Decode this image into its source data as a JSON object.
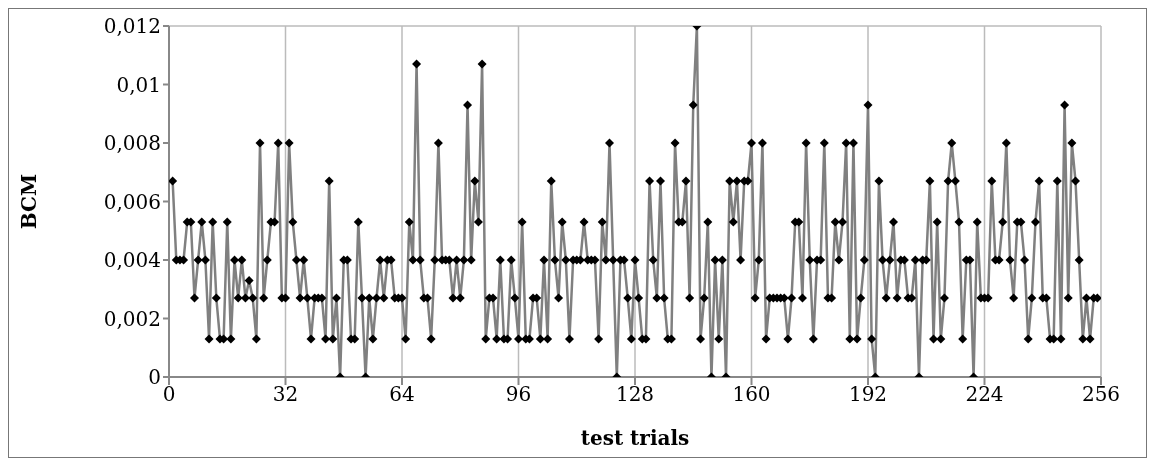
{
  "chart_data": {
    "type": "line",
    "xlabel": "test trials",
    "ylabel": "BCM",
    "x": [
      1,
      2,
      3,
      4,
      5,
      6,
      7,
      8,
      9,
      10,
      11,
      12,
      13,
      14,
      15,
      16,
      17,
      18,
      19,
      20,
      21,
      22,
      23,
      24,
      25,
      26,
      27,
      28,
      29,
      30,
      31,
      32,
      33,
      34,
      35,
      36,
      37,
      38,
      39,
      40,
      41,
      42,
      43,
      44,
      45,
      46,
      47,
      48,
      49,
      50,
      51,
      52,
      53,
      54,
      55,
      56,
      57,
      58,
      59,
      60,
      61,
      62,
      63,
      64,
      65,
      66,
      67,
      68,
      69,
      70,
      71,
      72,
      73,
      74,
      75,
      76,
      77,
      78,
      79,
      80,
      81,
      82,
      83,
      84,
      85,
      86,
      87,
      88,
      89,
      90,
      91,
      92,
      93,
      94,
      95,
      96,
      97,
      98,
      99,
      100,
      101,
      102,
      103,
      104,
      105,
      106,
      107,
      108,
      109,
      110,
      111,
      112,
      113,
      114,
      115,
      116,
      117,
      118,
      119,
      120,
      121,
      122,
      123,
      124,
      125,
      126,
      127,
      128,
      129,
      130,
      131,
      132,
      133,
      134,
      135,
      136,
      137,
      138,
      139,
      140,
      141,
      142,
      143,
      144,
      145,
      146,
      147,
      148,
      149,
      150,
      151,
      152,
      153,
      154,
      155,
      156,
      157,
      158,
      159,
      160,
      161,
      162,
      163,
      164,
      165,
      166,
      167,
      168,
      169,
      170,
      171,
      172,
      173,
      174,
      175,
      176,
      177,
      178,
      179,
      180,
      181,
      182,
      183,
      184,
      185,
      186,
      187,
      188,
      189,
      190,
      191,
      192,
      193,
      194,
      195,
      196,
      197,
      198,
      199,
      200,
      201,
      202,
      203,
      204,
      205,
      206,
      207,
      208,
      209,
      210,
      211,
      212,
      213,
      214,
      215,
      216,
      217,
      218,
      219,
      220,
      221,
      222,
      223,
      224,
      225,
      226,
      227,
      228,
      229,
      230,
      231,
      232,
      233,
      234,
      235,
      236,
      237,
      238,
      239,
      240,
      241,
      242,
      243,
      244,
      245,
      246,
      247,
      248,
      249,
      250,
      251,
      252,
      253,
      254,
      255
    ],
    "series": [
      {
        "color": "#808080",
        "values": [
          0.0067,
          0.004,
          0.004,
          0.004,
          0.0053,
          0.0053,
          0.0027,
          0.004,
          0.0053,
          0.004,
          0.0013,
          0.0053,
          0.0027,
          0.0013,
          0.0013,
          0.0053,
          0.0013,
          0.004,
          0.0027,
          0.004,
          0.0027,
          0.0033,
          0.0027,
          0.0013,
          0.008,
          0.0027,
          0.004,
          0.0053,
          0.0053,
          0.008,
          0.0027,
          0.0027,
          0.008,
          0.0053,
          0.004,
          0.0027,
          0.004,
          0.0027,
          0.0013,
          0.0027,
          0.0027,
          0.0027,
          0.0013,
          0.0067,
          0.0013,
          0.0027,
          0,
          0.004,
          0.004,
          0.0013,
          0.0013,
          0.0053,
          0.0027,
          0,
          0.0027,
          0.0013,
          0.0027,
          0.004,
          0.0027,
          0.004,
          0.004,
          0.0027,
          0.0027,
          0.0027,
          0.0013,
          0.0053,
          0.004,
          0.0107,
          0.004,
          0.0027,
          0.0027,
          0.0013,
          0.004,
          0.008,
          0.004,
          0.004,
          0.004,
          0.0027,
          0.004,
          0.0027,
          0.004,
          0.0093,
          0.004,
          0.0067,
          0.0053,
          0.0107,
          0.0013,
          0.0027,
          0.0027,
          0.0013,
          0.004,
          0.0013,
          0.0013,
          0.004,
          0.0027,
          0.0013,
          0.0053,
          0.0013,
          0.0013,
          0.0027,
          0.0027,
          0.0013,
          0.004,
          0.0013,
          0.0067,
          0.004,
          0.0027,
          0.0053,
          0.004,
          0.0013,
          0.004,
          0.004,
          0.004,
          0.0053,
          0.004,
          0.004,
          0.004,
          0.0013,
          0.0053,
          0.004,
          0.008,
          0.004,
          0,
          0.004,
          0.004,
          0.0027,
          0.0013,
          0.004,
          0.0027,
          0.0013,
          0.0013,
          0.0067,
          0.004,
          0.0027,
          0.0067,
          0.0027,
          0.0013,
          0.0013,
          0.008,
          0.0053,
          0.0053,
          0.0067,
          0.0027,
          0.0093,
          0.012,
          0.0013,
          0.0027,
          0.0053,
          0,
          0.004,
          0.0013,
          0.004,
          0,
          0.0067,
          0.0053,
          0.0067,
          0.004,
          0.0067,
          0.0067,
          0.008,
          0.0027,
          0.004,
          0.008,
          0.0013,
          0.0027,
          0.0027,
          0.0027,
          0.0027,
          0.0027,
          0.0013,
          0.0027,
          0.0053,
          0.0053,
          0.0027,
          0.008,
          0.004,
          0.0013,
          0.004,
          0.004,
          0.008,
          0.0027,
          0.0027,
          0.0053,
          0.004,
          0.0053,
          0.008,
          0.0013,
          0.008,
          0.0013,
          0.0027,
          0.004,
          0.0093,
          0.0013,
          0,
          0.0067,
          0.004,
          0.0027,
          0.004,
          0.0053,
          0.0027,
          0.004,
          0.004,
          0.0027,
          0.0027,
          0.004,
          0,
          0.004,
          0.004,
          0.0067,
          0.0013,
          0.0053,
          0.0013,
          0.0027,
          0.0067,
          0.008,
          0.0067,
          0.0053,
          0.0013,
          0.004,
          0.004,
          0,
          0.0053,
          0.0027,
          0.0027,
          0.0027,
          0.0067,
          0.004,
          0.004,
          0.0053,
          0.008,
          0.004,
          0.0027,
          0.0053,
          0.0053,
          0.004,
          0.0013,
          0.0027,
          0.0053,
          0.0067,
          0.0027,
          0.0027,
          0.0013,
          0.0013,
          0.0067,
          0.0013,
          0.0093,
          0.0027,
          0.008,
          0.0067,
          0.004,
          0.0013,
          0.0027,
          0.0013,
          0.0027,
          0.0027
        ]
      }
    ],
    "xlim": [
      0,
      256
    ],
    "xticks": [
      0,
      32,
      64,
      96,
      128,
      160,
      192,
      224,
      256
    ],
    "ylim": [
      0,
      0.012
    ],
    "yticks": [
      0,
      {
        "value": 0.002,
        "label": "0,002"
      },
      {
        "value": 0.004,
        "label": "0,004"
      },
      {
        "value": 0.006,
        "label": "0,006"
      },
      {
        "value": 0.008,
        "label": "0,008"
      },
      {
        "value": 0.01,
        "label": "0,01"
      },
      {
        "value": 0.012,
        "label": "0,012"
      }
    ],
    "grid": true,
    "legend": false,
    "marker": "diamond",
    "line_style": "solid"
  }
}
